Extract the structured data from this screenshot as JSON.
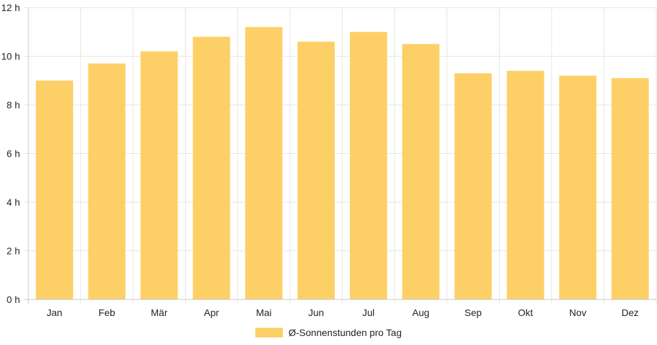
{
  "chart_data": {
    "type": "bar",
    "categories": [
      "Jan",
      "Feb",
      "Mär",
      "Apr",
      "Mai",
      "Jun",
      "Jul",
      "Aug",
      "Sep",
      "Okt",
      "Nov",
      "Dez"
    ],
    "series": [
      {
        "name": "Ø-Sonnenstunden pro Tag",
        "values": [
          9.0,
          9.7,
          10.2,
          10.8,
          11.2,
          10.6,
          11.0,
          10.5,
          9.3,
          9.4,
          9.2,
          9.1
        ],
        "color": "#fdd067"
      }
    ],
    "y_ticks": [
      "0 h",
      "2 h",
      "4 h",
      "6 h",
      "8 h",
      "10 h",
      "12 h"
    ],
    "ylim": [
      0,
      12
    ],
    "grid": true,
    "legend_position": "bottom",
    "grid_color": "#e6e6e6",
    "axis_color": "#c8c8c8"
  }
}
